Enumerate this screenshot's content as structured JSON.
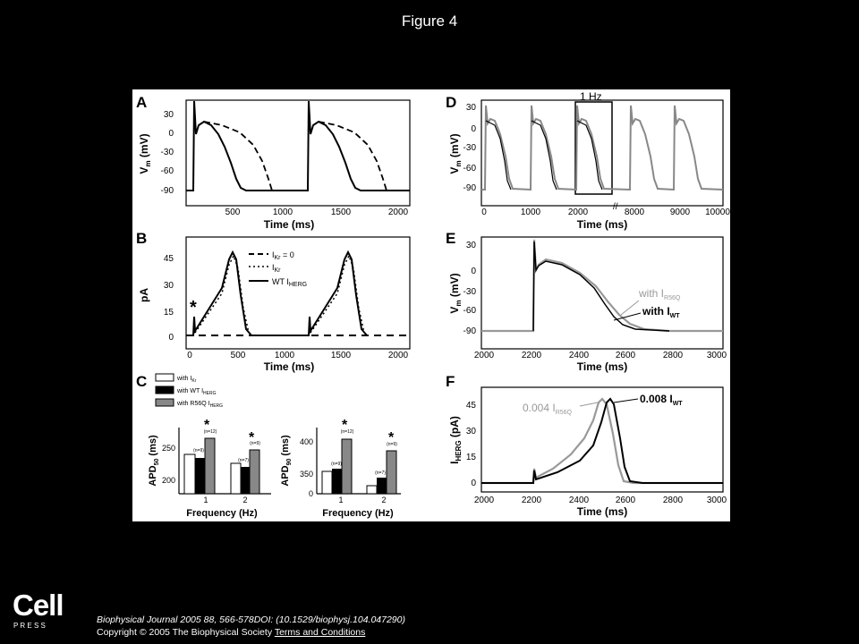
{
  "slide": {
    "title": "Figure 4"
  },
  "figure": {
    "panel_labels": [
      "A",
      "B",
      "C",
      "D",
      "E",
      "F"
    ],
    "panel_a": {
      "ylabel": "V",
      "ylabel_sub": "m",
      "ylabel_unit": " (mV)",
      "xlabel": "Time (ms)",
      "yticks": [
        "30",
        "0",
        "-30",
        "-60",
        "-90"
      ],
      "xticks": [
        "500",
        "1000",
        "1500",
        "2000"
      ]
    },
    "panel_b": {
      "ylabel": "pA",
      "xlabel": "Time (ms)",
      "yticks": [
        "45",
        "30",
        "15",
        "0"
      ],
      "xticks": [
        "0",
        "500",
        "1000",
        "1500",
        "2000"
      ],
      "asterisk": "*",
      "legend": [
        {
          "pre": "I",
          "sub": "Kr",
          "post": " = 0",
          "style": "dashed"
        },
        {
          "pre": "I",
          "sub": "Kr",
          "post": "",
          "style": "dotted"
        },
        {
          "pre": "WT I",
          "sub": "HERG",
          "post": "",
          "style": "solid"
        }
      ]
    },
    "panel_c": {
      "legend": [
        {
          "pre": "with I",
          "sub": "Kr",
          "fill": "#ffffff"
        },
        {
          "pre": "with WT I",
          "sub": "HERG",
          "fill": "#000000"
        },
        {
          "pre": "with R56Q I",
          "sub": "HERG",
          "fill": "#888888"
        }
      ],
      "left": {
        "ylabel": "APD",
        "ylabel_sub": "50",
        "ylabel_unit": " (ms)",
        "xlabel": "Frequency (Hz)",
        "yticks": [
          "250",
          "200"
        ],
        "xticks": [
          "1",
          "2"
        ],
        "n_labels": [
          "(n=9)",
          "(n=12)",
          "(n=7)",
          "(n=9)"
        ],
        "asterisk": "*"
      },
      "right": {
        "ylabel": "APD",
        "ylabel_sub": "90",
        "ylabel_unit": " (ms)",
        "xlabel": "Frequency (Hz)",
        "yticks": [
          "400",
          "350",
          "0"
        ],
        "xticks": [
          "1",
          "2"
        ],
        "n_labels": [
          "(n=9)",
          "(n=12)",
          "(n=7)",
          "(n=9)"
        ],
        "asterisk": "*"
      }
    },
    "panel_d": {
      "ylabel": "V",
      "ylabel_sub": "m",
      "ylabel_unit": " (mV)",
      "xlabel": "Time (ms)",
      "box_label": "1 Hz",
      "yticks": [
        "30",
        "0",
        "-30",
        "-60",
        "-90"
      ],
      "xticks": [
        "0",
        "1000",
        "2000",
        "8000",
        "9000",
        "10000"
      ]
    },
    "panel_e": {
      "ylabel": "V",
      "ylabel_sub": "m",
      "ylabel_unit": " (mV)",
      "xlabel": "Time (ms)",
      "yticks": [
        "30",
        "0",
        "-30",
        "-60",
        "-90"
      ],
      "xticks": [
        "2000",
        "2200",
        "2400",
        "2600",
        "2800",
        "3000"
      ],
      "labels": [
        {
          "pre": "with I",
          "sub": "R56Q",
          "color": "#999999"
        },
        {
          "pre": "with I",
          "sub": "WT",
          "color": "#000000"
        }
      ]
    },
    "panel_f": {
      "ylabel": "I",
      "ylabel_sub": "HERG",
      "ylabel_unit": " (pA)",
      "xlabel": "Time (ms)",
      "yticks": [
        "45",
        "30",
        "15",
        "0"
      ],
      "xticks": [
        "2000",
        "2200",
        "2400",
        "2600",
        "2800",
        "3000"
      ],
      "labels": [
        {
          "pre": "0.004 I",
          "sub": "R56Q",
          "color": "#999999"
        },
        {
          "pre": "0.008 I",
          "sub": "WT",
          "color": "#000000"
        }
      ]
    }
  },
  "footer": {
    "logo_word": "Cell",
    "logo_press": "P R E S S",
    "citation": "Biophysical Journal 2005 88, 566-578DOI: (10.1529/biophysj.104.047290)",
    "copyright": "Copyright © 2005 The Biophysical Society",
    "terms_link": "Terms and Conditions"
  }
}
